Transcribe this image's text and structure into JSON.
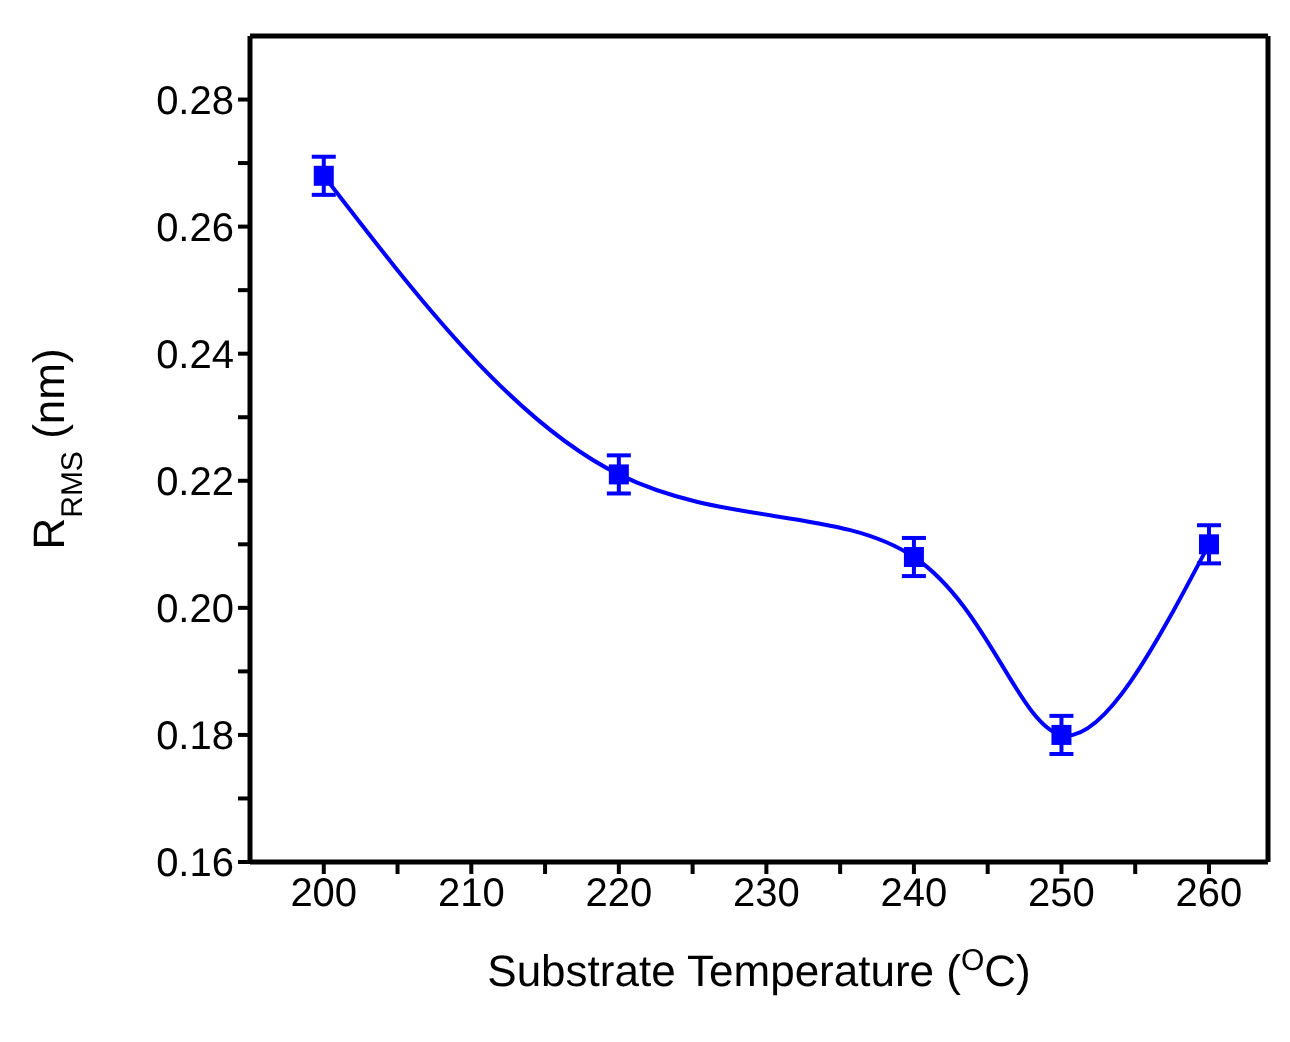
{
  "chart_data": {
    "type": "line",
    "xlabel": "Substrate Temperature ($^{O}$C)",
    "ylabel": "R$_{RMS}$ (nm)",
    "x": [
      200,
      220,
      240,
      250,
      260
    ],
    "series": [
      {
        "color": "#0000ff",
        "values": [
          0.268,
          0.221,
          0.208,
          0.18,
          0.21
        ],
        "errors": [
          0.003,
          0.003,
          0.003,
          0.003,
          0.003
        ]
      }
    ],
    "marker": "square",
    "line_style": "solid",
    "xlim": [
      195,
      264
    ],
    "xticks": [
      200,
      {
        "value": 205,
        "label": null
      },
      210,
      {
        "value": 215,
        "label": null
      },
      220,
      {
        "value": 225,
        "label": null
      },
      230,
      {
        "value": 235,
        "label": null
      },
      240,
      {
        "value": 245,
        "label": null
      },
      250,
      {
        "value": 255,
        "label": null
      },
      260
    ],
    "ylim": [
      0.16,
      0.29
    ],
    "yticks": [
      0.16,
      {
        "value": 0.17,
        "label": null
      },
      0.18,
      {
        "value": 0.19,
        "label": null
      },
      {
        "value": 0.2,
        "label": "0.20"
      },
      {
        "value": 0.21,
        "label": null
      },
      0.22,
      {
        "value": 0.23,
        "label": null
      },
      0.24,
      {
        "value": 0.25,
        "label": null
      },
      0.26,
      {
        "value": 0.27,
        "label": null
      },
      0.28
    ],
    "grid": false,
    "legend": false
  }
}
